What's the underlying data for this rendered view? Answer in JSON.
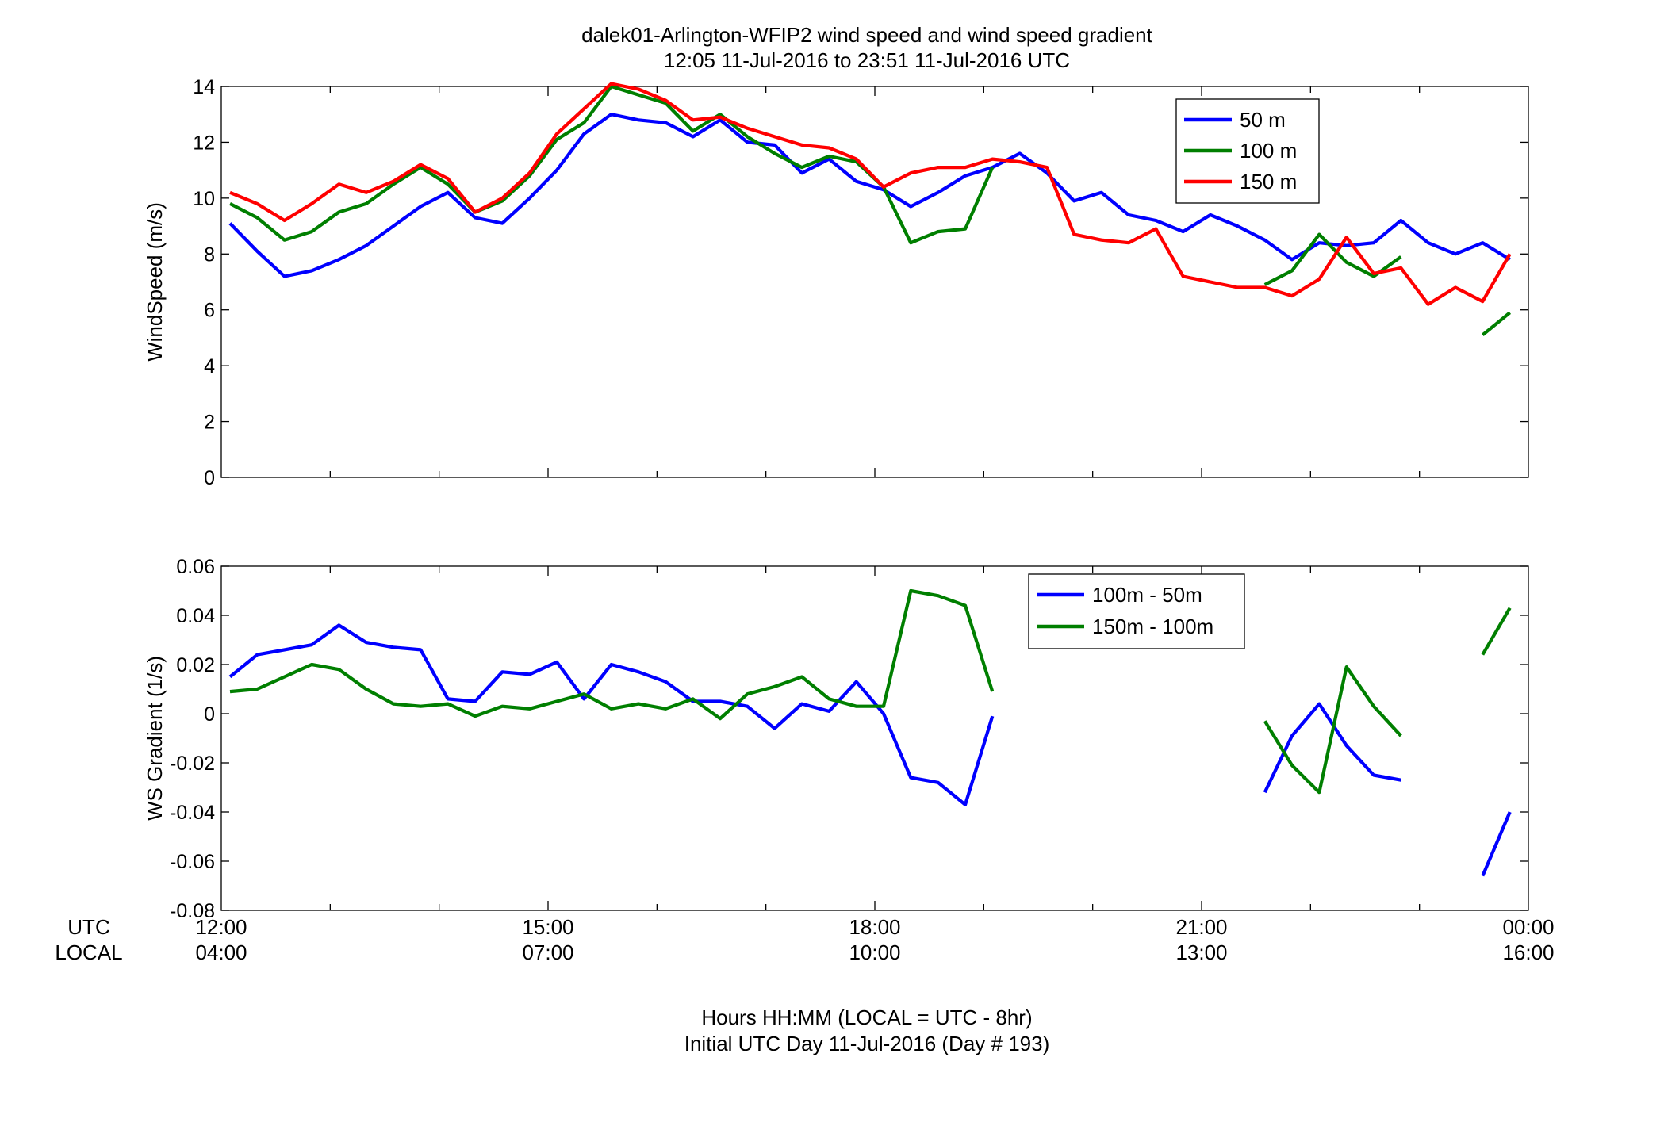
{
  "figure": {
    "title_line1": "dalek01-Arlington-WFIP2  wind speed and wind speed gradient",
    "title_line2": "12:05 11-Jul-2016 to 23:51 11-Jul-2016  UTC",
    "xlabel_line1": "Hours HH:MM  (LOCAL = UTC - 8hr)",
    "xlabel_line2": "Initial UTC Day 11-Jul-2016 (Day # 193)",
    "utc_row_label": "UTC",
    "local_row_label": "LOCAL",
    "x_ticks_utc": [
      "12:00",
      "15:00",
      "18:00",
      "21:00",
      "00:00"
    ],
    "x_ticks_local": [
      "04:00",
      "07:00",
      "10:00",
      "13:00",
      "16:00"
    ]
  },
  "colors": {
    "blue": "#0000FF",
    "green": "#007F00",
    "red": "#FF0000"
  },
  "chart_data": [
    {
      "type": "line",
      "ylabel": "WindSpeed (m/s)",
      "xlim": [
        0,
        12
      ],
      "ylim": [
        0,
        14
      ],
      "x_tick_values": [
        0,
        3,
        6,
        9,
        12
      ],
      "y_ticks": [
        "0",
        "2",
        "4",
        "6",
        "8",
        "10",
        "12",
        "14"
      ],
      "legend_position": "top-right",
      "x": [
        0.08,
        0.33,
        0.58,
        0.83,
        1.08,
        1.33,
        1.58,
        1.83,
        2.08,
        2.33,
        2.58,
        2.83,
        3.08,
        3.33,
        3.58,
        3.83,
        4.08,
        4.33,
        4.58,
        4.83,
        5.08,
        5.33,
        5.58,
        5.83,
        6.08,
        6.33,
        6.58,
        6.83,
        7.08,
        7.33,
        7.58,
        7.83,
        8.08,
        8.33,
        8.58,
        8.83,
        9.08,
        9.33,
        9.58,
        9.83,
        10.08,
        10.33,
        10.58,
        10.83,
        11.08,
        11.33,
        11.58,
        11.83
      ],
      "series": [
        {
          "name": "50 m",
          "color": "blue",
          "values": [
            9.1,
            8.1,
            7.2,
            7.4,
            7.8,
            8.3,
            9.0,
            9.7,
            10.2,
            9.3,
            9.1,
            10.0,
            11.0,
            12.3,
            13.0,
            12.8,
            12.7,
            12.2,
            12.8,
            12.0,
            11.9,
            10.9,
            11.4,
            10.6,
            10.3,
            9.7,
            10.2,
            10.8,
            11.1,
            11.6,
            10.9,
            9.9,
            10.2,
            9.4,
            9.2,
            8.8,
            9.4,
            9.0,
            8.5,
            7.8,
            8.4,
            8.3,
            8.4,
            9.2,
            8.4,
            8.0,
            8.4,
            7.8
          ]
        },
        {
          "name": "100 m",
          "color": "green",
          "values": [
            9.8,
            9.3,
            8.5,
            8.8,
            9.5,
            9.8,
            10.5,
            11.1,
            10.5,
            9.5,
            9.9,
            10.8,
            12.1,
            12.7,
            14.0,
            13.7,
            13.4,
            12.4,
            13.0,
            12.2,
            11.6,
            11.1,
            11.5,
            11.3,
            10.4,
            8.4,
            8.8,
            8.9,
            11.1,
            null,
            null,
            null,
            null,
            null,
            null,
            null,
            null,
            null,
            6.9,
            7.4,
            8.7,
            7.7,
            7.2,
            7.9,
            null,
            null,
            5.1,
            5.9
          ]
        },
        {
          "name": "150 m",
          "color": "red",
          "values": [
            10.2,
            9.8,
            9.2,
            9.8,
            10.5,
            10.2,
            10.6,
            11.2,
            10.7,
            9.5,
            10.0,
            10.9,
            12.3,
            13.2,
            14.1,
            13.9,
            13.5,
            12.8,
            12.9,
            12.5,
            12.2,
            11.9,
            11.8,
            11.4,
            10.4,
            10.9,
            11.1,
            11.1,
            11.4,
            11.3,
            11.1,
            8.7,
            8.5,
            8.4,
            8.9,
            7.2,
            7.0,
            6.8,
            6.8,
            6.5,
            7.1,
            8.6,
            7.3,
            7.5,
            6.2,
            6.8,
            6.3,
            8.0
          ]
        }
      ]
    },
    {
      "type": "line",
      "ylabel": "WS Gradient (1/s)",
      "xlim": [
        0,
        12
      ],
      "ylim": [
        -0.08,
        0.06
      ],
      "x_tick_values": [
        0,
        3,
        6,
        9,
        12
      ],
      "y_ticks": [
        "-0.08",
        "-0.06",
        "-0.04",
        "-0.02",
        "0",
        "0.02",
        "0.04",
        "0.06"
      ],
      "legend_position": "top-right",
      "x": [
        0.08,
        0.33,
        0.58,
        0.83,
        1.08,
        1.33,
        1.58,
        1.83,
        2.08,
        2.33,
        2.58,
        2.83,
        3.08,
        3.33,
        3.58,
        3.83,
        4.08,
        4.33,
        4.58,
        4.83,
        5.08,
        5.33,
        5.58,
        5.83,
        6.08,
        6.33,
        6.58,
        6.83,
        7.08,
        7.33,
        7.58,
        7.83,
        8.08,
        8.33,
        8.58,
        8.83,
        9.08,
        9.33,
        9.58,
        9.83,
        10.08,
        10.33,
        10.58,
        10.83,
        11.08,
        11.33,
        11.58,
        11.83
      ],
      "series": [
        {
          "name": "100m - 50m",
          "color": "blue",
          "values": [
            0.015,
            0.024,
            0.026,
            0.028,
            0.036,
            0.029,
            0.027,
            0.026,
            0.006,
            0.005,
            0.017,
            0.016,
            0.021,
            0.006,
            0.02,
            0.017,
            0.013,
            0.005,
            0.005,
            0.003,
            -0.006,
            0.004,
            0.001,
            0.013,
            0.0,
            -0.026,
            -0.028,
            -0.037,
            -0.001,
            null,
            null,
            null,
            null,
            null,
            null,
            null,
            null,
            null,
            -0.032,
            -0.009,
            0.004,
            -0.013,
            -0.025,
            -0.027,
            null,
            null,
            -0.066,
            -0.04
          ]
        },
        {
          "name": "150m - 100m",
          "color": "green",
          "values": [
            0.009,
            0.01,
            0.015,
            0.02,
            0.018,
            0.01,
            0.004,
            0.003,
            0.004,
            -0.001,
            0.003,
            0.002,
            0.005,
            0.008,
            0.002,
            0.004,
            0.002,
            0.006,
            -0.002,
            0.008,
            0.011,
            0.015,
            0.006,
            0.003,
            0.003,
            0.05,
            0.048,
            0.044,
            0.009,
            null,
            null,
            null,
            null,
            null,
            null,
            null,
            null,
            null,
            -0.003,
            -0.021,
            -0.032,
            0.019,
            0.003,
            -0.009,
            null,
            null,
            0.024,
            0.043
          ]
        }
      ]
    }
  ]
}
